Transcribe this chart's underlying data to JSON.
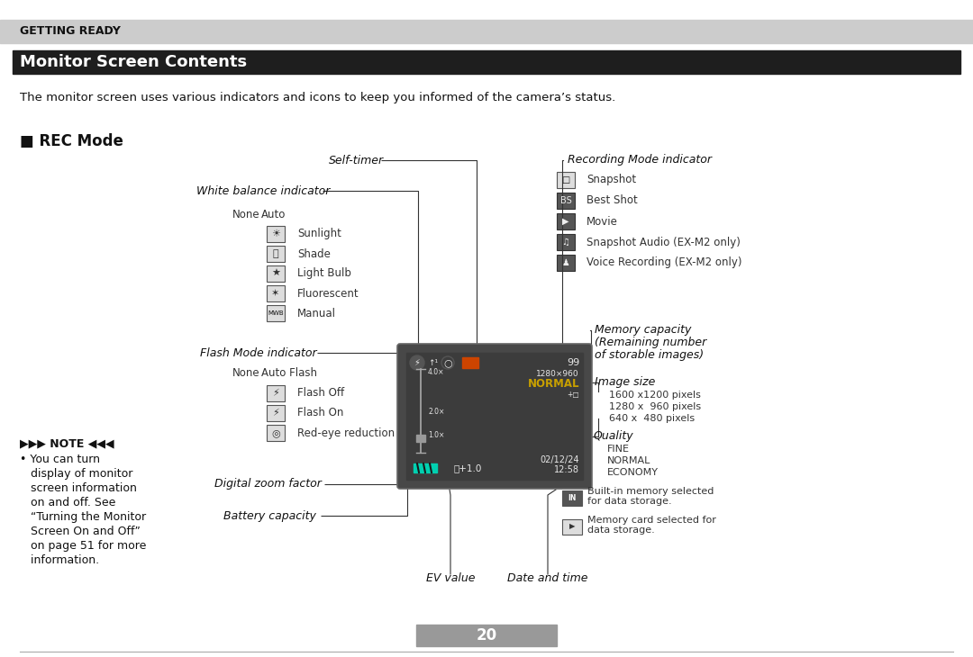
{
  "page_bg": "#ffffff",
  "header_bg": "#cccccc",
  "header_text": "GETTING READY",
  "title_bg": "#1e1e1e",
  "title_text": "Monitor Screen Contents",
  "subtitle": "The monitor screen uses various indicators and icons to keep you informed of the camera’s status.",
  "rec_mode_label": "■ REC Mode",
  "camera_bg": "#484848",
  "screen_bg": "#3c3c3c",
  "screen_white": "#e8e8e8",
  "screen_yellow": "#c8a000",
  "screen_cyan": "#00d0b0",
  "screen_orange": "#cc4400",
  "line_color": "#333333",
  "icon_bg": "#dddddd",
  "icon_border": "#555555",
  "dark_icon_bg": "#555555",
  "page_number": "20",
  "footer_bg": "#999999"
}
